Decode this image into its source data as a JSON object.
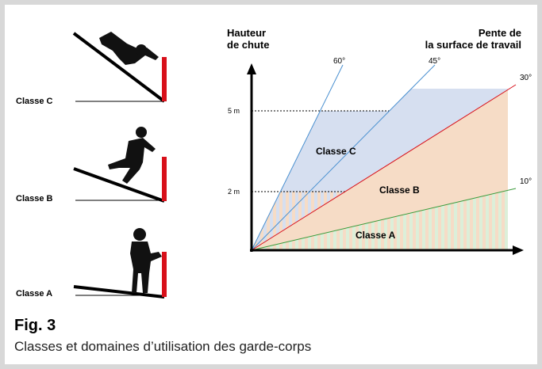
{
  "left_panel": {
    "labels": [
      "Classe C",
      "Classe B",
      "Classe A"
    ]
  },
  "diagram": {
    "y_axis_title": [
      "Hauteur",
      "de chute"
    ],
    "x_axis_title": [
      "Pente de",
      "la surface de travail"
    ],
    "angles": [
      "60°",
      "45°",
      "30°",
      "10°"
    ],
    "heights": [
      "5 m",
      "2 m"
    ],
    "regions": [
      "Classe C",
      "Classe B",
      "Classe A"
    ]
  },
  "figure": {
    "number": "Fig. 3",
    "caption": "Classes et domaines d’utilisation des garde-corps"
  }
}
